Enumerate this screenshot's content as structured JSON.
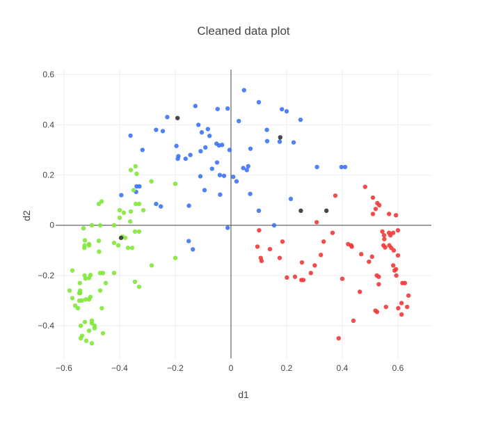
{
  "chart_data": {
    "type": "scatter",
    "title": "Cleaned data plot",
    "xlabel": "d1",
    "ylabel": "d2",
    "xlim": [
      -0.63,
      0.72
    ],
    "ylim": [
      -0.53,
      0.62
    ],
    "xticks": [
      -0.6,
      -0.4,
      -0.2,
      0,
      0.2,
      0.4,
      0.6
    ],
    "yticks": [
      -0.4,
      -0.2,
      0,
      0.2,
      0.4,
      0.6
    ],
    "xtick_labels": [
      "−0.6",
      "−0.4",
      "−0.2",
      "0",
      "0.2",
      "0.4",
      "0.6"
    ],
    "ytick_labels": [
      "−0.4",
      "−0.2",
      "0",
      "0.2",
      "0.4",
      "0.6"
    ],
    "grid": true,
    "legend": "none",
    "series": [
      {
        "color": "#3d74f5",
        "x": [
          0.047,
          0.1,
          0.183,
          0.2,
          0.25,
          0.41,
          -0.128,
          -0.048,
          -0.012,
          0.028,
          0.225,
          0.129,
          0.13,
          0.07,
          0.175,
          -0.229,
          -0.269,
          -0.361,
          -0.318,
          -0.245,
          -0.117,
          -0.105,
          -0.083,
          -0.077,
          -0.052,
          -0.043,
          -0.032,
          -0.092,
          -0.109,
          -0.146,
          -0.189,
          -0.196,
          -0.005,
          0.044,
          -0.191,
          -0.163,
          -0.05,
          0.057,
          0.062,
          -0.11,
          0.309,
          0.397,
          0.008,
          -0.025,
          0.02,
          -0.068,
          -0.04,
          -0.329,
          -0.341,
          -0.394,
          -0.339,
          -0.269,
          -0.252,
          -0.151,
          -0.095,
          -0.039,
          0.069,
          0.1,
          0.215,
          0.155,
          -0.012,
          -0.152,
          -0.137
        ],
        "y": [
          0.538,
          0.49,
          0.462,
          0.454,
          0.42,
          0.232,
          0.475,
          0.463,
          0.465,
          0.415,
          0.33,
          0.38,
          0.335,
          0.305,
          0.333,
          0.431,
          0.38,
          0.357,
          0.3,
          0.375,
          0.4,
          0.37,
          0.383,
          0.356,
          0.325,
          0.318,
          0.32,
          0.31,
          0.295,
          0.28,
          0.275,
          0.316,
          0.3,
          0.228,
          0.265,
          0.265,
          0.25,
          0.22,
          0.235,
          0.195,
          0.232,
          0.232,
          0.193,
          0.197,
          0.175,
          0.225,
          0.2,
          0.155,
          0.133,
          0.12,
          0.155,
          0.085,
          0.075,
          0.078,
          0.14,
          0.122,
          0.125,
          0.058,
          0.105,
          0.0,
          -0.01,
          -0.063,
          -0.096
        ]
      },
      {
        "color": "#ef3a3a",
        "x": [
          0.482,
          0.375,
          0.51,
          0.526,
          0.533,
          0.52,
          0.51,
          0.568,
          0.593,
          0.308,
          0.101,
          0.14,
          0.185,
          0.095,
          0.11,
          0.23,
          0.255,
          0.333,
          0.365,
          0.421,
          0.434,
          0.468,
          0.496,
          0.554,
          0.576,
          0.6,
          0.585,
          0.107,
          0.175,
          0.201,
          0.26,
          0.301,
          0.323,
          0.287,
          0.253,
          0.463,
          0.44,
          0.507,
          0.524,
          0.531,
          0.583,
          0.593,
          0.625,
          0.594,
          0.638,
          0.613,
          0.613,
          0.557,
          0.531,
          0.525,
          0.519,
          0.633,
          0.601,
          0.588,
          0.616,
          0.387,
          0.432,
          0.55,
          0.583,
          0.544,
          0.551,
          0.568,
          0.573,
          0.569,
          0.6,
          0.548,
          0.4
        ],
        "y": [
          0.153,
          0.118,
          0.11,
          0.088,
          0.08,
          0.065,
          0.045,
          0.045,
          0.04,
          0.012,
          -0.02,
          -0.095,
          -0.065,
          -0.085,
          -0.142,
          -0.205,
          -0.148,
          -0.065,
          -0.03,
          -0.075,
          -0.085,
          -0.115,
          -0.145,
          -0.088,
          -0.09,
          -0.12,
          -0.1,
          -0.13,
          -0.13,
          -0.208,
          -0.218,
          -0.16,
          -0.118,
          -0.19,
          -0.218,
          -0.265,
          -0.38,
          -0.125,
          -0.2,
          -0.205,
          -0.16,
          -0.175,
          -0.23,
          -0.2,
          -0.28,
          -0.31,
          -0.355,
          -0.325,
          -0.235,
          -0.345,
          -0.34,
          -0.325,
          -0.33,
          -0.18,
          -0.23,
          -0.45,
          -0.08,
          -0.04,
          -0.03,
          -0.025,
          -0.055,
          -0.03,
          -0.04,
          -0.08,
          -0.02,
          -0.08,
          -0.213
        ]
      },
      {
        "color": "#7fe83a",
        "x": [
          -0.36,
          -0.343,
          -0.339,
          -0.286,
          -0.2,
          -0.35,
          -0.33,
          -0.315,
          -0.342,
          -0.36,
          -0.4,
          -0.385,
          -0.362,
          -0.475,
          -0.465,
          -0.53,
          -0.5,
          -0.47,
          -0.42,
          -0.4,
          -0.39,
          -0.345,
          -0.33,
          -0.525,
          -0.51,
          -0.475,
          -0.474,
          -0.51,
          -0.526,
          -0.527,
          -0.42,
          -0.405,
          -0.37,
          -0.355,
          -0.285,
          -0.2,
          -0.46,
          -0.47,
          -0.57,
          -0.505,
          -0.51,
          -0.42,
          -0.543,
          -0.542,
          -0.523,
          -0.542,
          -0.526,
          -0.545,
          -0.536,
          -0.45,
          -0.47,
          -0.505,
          -0.51,
          -0.464,
          -0.5,
          -0.58,
          -0.57,
          -0.38,
          -0.345,
          -0.33,
          -0.49,
          -0.46,
          -0.56,
          -0.545,
          -0.522,
          -0.5,
          -0.49,
          -0.51,
          -0.54,
          -0.535,
          -0.52,
          -0.5,
          -0.54,
          -0.55,
          -0.525
        ],
        "y": [
          0.22,
          0.235,
          0.205,
          0.175,
          0.165,
          0.14,
          0.085,
          0.06,
          0.085,
          0.055,
          0.06,
          0.05,
          0.015,
          0.085,
          0.095,
          -0.012,
          0.0,
          0.0,
          0.0,
          0.03,
          -0.045,
          -0.025,
          -0.025,
          -0.06,
          -0.075,
          -0.062,
          -0.105,
          -0.08,
          -0.08,
          -0.09,
          -0.07,
          -0.08,
          -0.09,
          -0.09,
          -0.16,
          -0.13,
          -0.19,
          -0.19,
          -0.18,
          -0.198,
          -0.21,
          -0.19,
          -0.23,
          -0.26,
          -0.212,
          -0.27,
          -0.2,
          -0.27,
          -0.3,
          -0.23,
          -0.26,
          -0.285,
          -0.295,
          -0.33,
          -0.38,
          -0.26,
          -0.29,
          -0.05,
          -0.225,
          -0.245,
          -0.4,
          -0.43,
          -0.32,
          -0.3,
          -0.295,
          -0.39,
          -0.41,
          -0.42,
          -0.4,
          -0.44,
          -0.46,
          -0.47,
          -0.45,
          -0.33,
          -0.385
        ]
      },
      {
        "color": "#333333",
        "x": [
          -0.192,
          0.177,
          0.251,
          0.343,
          -0.395
        ],
        "y": [
          0.427,
          0.35,
          0.058,
          0.058,
          -0.05
        ]
      }
    ]
  }
}
